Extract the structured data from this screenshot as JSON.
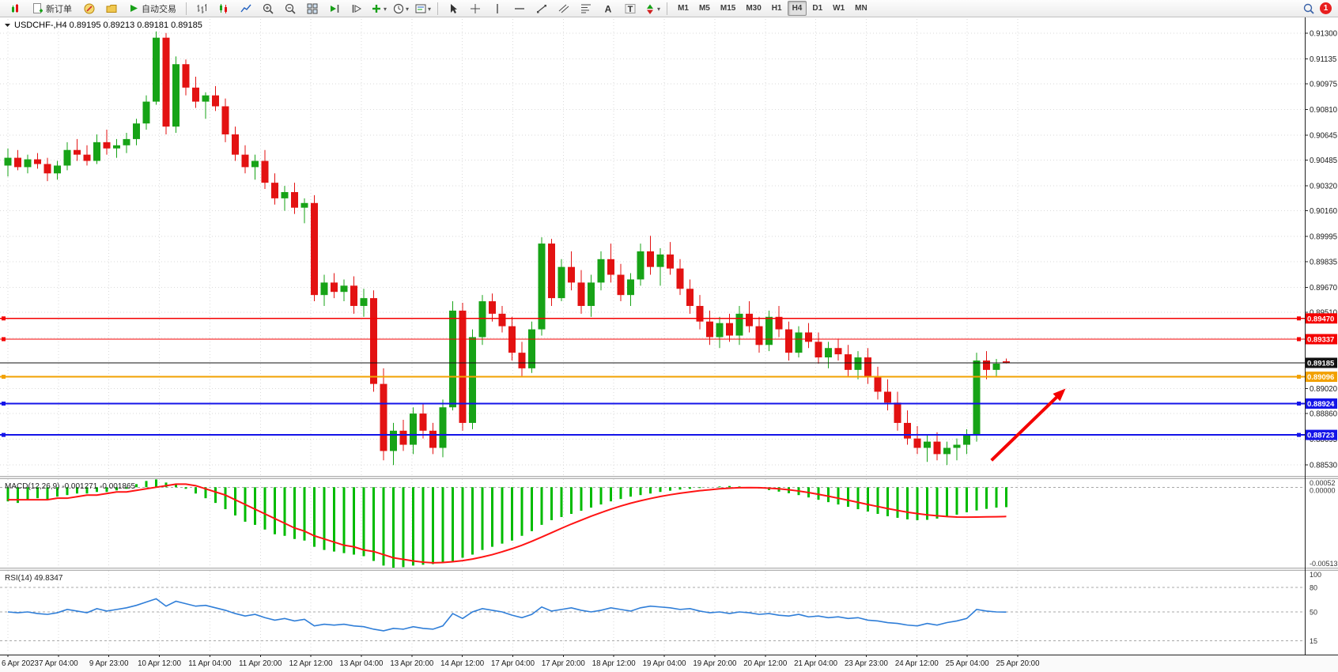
{
  "toolbar": {
    "new_order_label": "新订单",
    "autotrading_label": "自动交易",
    "timeframes": [
      "M1",
      "M5",
      "M15",
      "M30",
      "H1",
      "H4",
      "D1",
      "W1",
      "MN"
    ],
    "active_timeframe": "H4",
    "notification_count": "1"
  },
  "chart": {
    "symbol_header": "USDCHF-,H4",
    "ohlc_text": "0.89195 0.89213 0.89181 0.89185",
    "macd_label": "MACD(12,26,9)",
    "macd_values": "-0.001271 -0.001865",
    "rsi_label": "RSI(14)",
    "rsi_value": "49.8347"
  },
  "chart_data": {
    "type": "candlestick",
    "title": "USDCHF-,H4",
    "up_color": "#17a317",
    "down_color": "#e31212",
    "grid_color": "#dadada",
    "ylim": [
      0.8846,
      0.9139
    ],
    "y_ticks": [
      0.913,
      0.91135,
      0.90975,
      0.9081,
      0.90645,
      0.90485,
      0.9032,
      0.9016,
      0.89995,
      0.89835,
      0.8967,
      0.8951,
      0.89345,
      0.8902,
      0.8886,
      0.88695,
      0.8853
    ],
    "x_labels": [
      "6 Apr 2023",
      "7 Apr 04:00",
      "9 Apr 23:00",
      "10 Apr 12:00",
      "11 Apr 04:00",
      "11 Apr 20:00",
      "12 Apr 12:00",
      "13 Apr 04:00",
      "13 Apr 20:00",
      "14 Apr 12:00",
      "17 Apr 04:00",
      "17 Apr 20:00",
      "18 Apr 12:00",
      "19 Apr 04:00",
      "19 Apr 20:00",
      "20 Apr 12:00",
      "21 Apr 04:00",
      "23 Apr 23:00",
      "24 Apr 12:00",
      "25 Apr 04:00",
      "25 Apr 20:00"
    ],
    "candles": [
      [
        0.9045,
        0.9056,
        0.9038,
        0.905
      ],
      [
        0.905,
        0.9055,
        0.9042,
        0.9044
      ],
      [
        0.9044,
        0.9052,
        0.904,
        0.9049
      ],
      [
        0.9049,
        0.9053,
        0.9043,
        0.9046
      ],
      [
        0.9046,
        0.905,
        0.9035,
        0.904
      ],
      [
        0.904,
        0.9048,
        0.9036,
        0.9045
      ],
      [
        0.9045,
        0.906,
        0.9042,
        0.9055
      ],
      [
        0.9055,
        0.9062,
        0.9048,
        0.9052
      ],
      [
        0.9052,
        0.9058,
        0.9045,
        0.9048
      ],
      [
        0.9048,
        0.9065,
        0.9046,
        0.906
      ],
      [
        0.906,
        0.9068,
        0.9052,
        0.9056
      ],
      [
        0.9056,
        0.9062,
        0.905,
        0.9058
      ],
      [
        0.9058,
        0.9066,
        0.9053,
        0.9062
      ],
      [
        0.9062,
        0.9075,
        0.9058,
        0.9072
      ],
      [
        0.9072,
        0.909,
        0.9068,
        0.9086
      ],
      [
        0.9086,
        0.9131,
        0.9084,
        0.9127
      ],
      [
        0.9127,
        0.913,
        0.9065,
        0.907
      ],
      [
        0.907,
        0.9115,
        0.9066,
        0.911
      ],
      [
        0.911,
        0.9113,
        0.909,
        0.9095
      ],
      [
        0.9095,
        0.9102,
        0.9082,
        0.9086
      ],
      [
        0.9086,
        0.9092,
        0.9075,
        0.909
      ],
      [
        0.909,
        0.9096,
        0.908,
        0.9083
      ],
      [
        0.9083,
        0.9088,
        0.906,
        0.9065
      ],
      [
        0.9065,
        0.907,
        0.9048,
        0.9052
      ],
      [
        0.9052,
        0.9058,
        0.904,
        0.9044
      ],
      [
        0.9044,
        0.9052,
        0.9036,
        0.9048
      ],
      [
        0.9048,
        0.9055,
        0.903,
        0.9034
      ],
      [
        0.9034,
        0.904,
        0.902,
        0.9024
      ],
      [
        0.9024,
        0.9032,
        0.9016,
        0.9028
      ],
      [
        0.9028,
        0.9034,
        0.9014,
        0.9018
      ],
      [
        0.9018,
        0.9024,
        0.9008,
        0.9021
      ],
      [
        0.9021,
        0.9026,
        0.8958,
        0.8962
      ],
      [
        0.8962,
        0.8975,
        0.8955,
        0.897
      ],
      [
        0.897,
        0.8976,
        0.896,
        0.8964
      ],
      [
        0.8964,
        0.8972,
        0.8958,
        0.8968
      ],
      [
        0.8968,
        0.8974,
        0.895,
        0.8955
      ],
      [
        0.8955,
        0.8966,
        0.8948,
        0.896
      ],
      [
        0.896,
        0.8965,
        0.89,
        0.8905
      ],
      [
        0.8905,
        0.8915,
        0.8856,
        0.8862
      ],
      [
        0.8862,
        0.888,
        0.8853,
        0.8875
      ],
      [
        0.8875,
        0.8882,
        0.8862,
        0.8866
      ],
      [
        0.8866,
        0.889,
        0.886,
        0.8886
      ],
      [
        0.8886,
        0.8892,
        0.887,
        0.8875
      ],
      [
        0.8875,
        0.888,
        0.886,
        0.8864
      ],
      [
        0.8864,
        0.8895,
        0.8858,
        0.889
      ],
      [
        0.889,
        0.8958,
        0.8888,
        0.8952
      ],
      [
        0.8952,
        0.8957,
        0.8875,
        0.888
      ],
      [
        0.888,
        0.894,
        0.8876,
        0.8935
      ],
      [
        0.8935,
        0.8962,
        0.893,
        0.8958
      ],
      [
        0.8958,
        0.8963,
        0.8945,
        0.895
      ],
      [
        0.895,
        0.8955,
        0.8938,
        0.8942
      ],
      [
        0.8942,
        0.8948,
        0.892,
        0.8925
      ],
      [
        0.8925,
        0.8932,
        0.891,
        0.8915
      ],
      [
        0.8915,
        0.8945,
        0.8912,
        0.894
      ],
      [
        0.894,
        0.8999,
        0.8936,
        0.8995
      ],
      [
        0.8995,
        0.8998,
        0.8955,
        0.896
      ],
      [
        0.896,
        0.8985,
        0.8958,
        0.898
      ],
      [
        0.898,
        0.899,
        0.8965,
        0.897
      ],
      [
        0.897,
        0.8978,
        0.895,
        0.8955
      ],
      [
        0.8955,
        0.8975,
        0.8948,
        0.897
      ],
      [
        0.897,
        0.899,
        0.8965,
        0.8985
      ],
      [
        0.8985,
        0.8995,
        0.897,
        0.8975
      ],
      [
        0.8975,
        0.8982,
        0.8958,
        0.8962
      ],
      [
        0.8962,
        0.8976,
        0.8955,
        0.8972
      ],
      [
        0.8972,
        0.8995,
        0.8968,
        0.899
      ],
      [
        0.899,
        0.9,
        0.8975,
        0.898
      ],
      [
        0.898,
        0.8992,
        0.8968,
        0.8988
      ],
      [
        0.8988,
        0.8996,
        0.8975,
        0.8979
      ],
      [
        0.8979,
        0.8985,
        0.8962,
        0.8966
      ],
      [
        0.8966,
        0.8972,
        0.895,
        0.8955
      ],
      [
        0.8955,
        0.8962,
        0.894,
        0.8945
      ],
      [
        0.8945,
        0.8952,
        0.893,
        0.8935
      ],
      [
        0.8935,
        0.8948,
        0.8928,
        0.8944
      ],
      [
        0.8944,
        0.895,
        0.8932,
        0.8936
      ],
      [
        0.8936,
        0.8955,
        0.893,
        0.895
      ],
      [
        0.895,
        0.8958,
        0.8938,
        0.8942
      ],
      [
        0.8942,
        0.8948,
        0.8925,
        0.893
      ],
      [
        0.893,
        0.8952,
        0.8926,
        0.8948
      ],
      [
        0.8948,
        0.8955,
        0.8935,
        0.894
      ],
      [
        0.894,
        0.8945,
        0.892,
        0.8925
      ],
      [
        0.8925,
        0.8942,
        0.8922,
        0.8938
      ],
      [
        0.8938,
        0.8944,
        0.8928,
        0.8932
      ],
      [
        0.8932,
        0.8938,
        0.8918,
        0.8922
      ],
      [
        0.8922,
        0.8932,
        0.8915,
        0.8928
      ],
      [
        0.8928,
        0.8934,
        0.892,
        0.8924
      ],
      [
        0.8924,
        0.893,
        0.891,
        0.8914
      ],
      [
        0.8914,
        0.8926,
        0.8908,
        0.8922
      ],
      [
        0.8922,
        0.8928,
        0.8905,
        0.891
      ],
      [
        0.891,
        0.8916,
        0.8895,
        0.89
      ],
      [
        0.89,
        0.8908,
        0.8888,
        0.8893
      ],
      [
        0.8893,
        0.89,
        0.8875,
        0.888
      ],
      [
        0.888,
        0.8888,
        0.8866,
        0.887
      ],
      [
        0.887,
        0.8878,
        0.886,
        0.8864
      ],
      [
        0.8864,
        0.8872,
        0.8855,
        0.8868
      ],
      [
        0.8868,
        0.8874,
        0.8856,
        0.886
      ],
      [
        0.886,
        0.8868,
        0.8853,
        0.8864
      ],
      [
        0.8864,
        0.887,
        0.8856,
        0.8866
      ],
      [
        0.8866,
        0.8876,
        0.886,
        0.8872
      ],
      [
        0.8872,
        0.8925,
        0.8868,
        0.892
      ],
      [
        0.892,
        0.8926,
        0.8908,
        0.8914
      ],
      [
        0.8914,
        0.8921,
        0.891,
        0.8918
      ],
      [
        0.89195,
        0.89213,
        0.89181,
        0.89185
      ]
    ],
    "price_levels": [
      {
        "price": 0.8947,
        "label": "0.89470",
        "color": "#f40000",
        "width": 1.2,
        "name": "resistance-line-1",
        "handle": true
      },
      {
        "price": 0.89337,
        "label": "0.89337",
        "color": "#f40000",
        "width": 1.2,
        "name": "resistance-line-2",
        "handle": true
      },
      {
        "price": 0.89185,
        "label": "0.89185",
        "color": "#111111",
        "width": 1,
        "name": "bid-price-line",
        "handle": false
      },
      {
        "price": 0.89096,
        "label": "0.89096",
        "color": "#f2a100",
        "width": 2,
        "name": "pivot-line",
        "handle": true
      },
      {
        "price": 0.88924,
        "label": "0.88924",
        "color": "#1414e8",
        "width": 2,
        "name": "support-line-1",
        "handle": true
      },
      {
        "price": 0.88723,
        "label": "0.88723",
        "color": "#1414e8",
        "width": 2,
        "name": "support-line-2",
        "handle": true
      }
    ],
    "arrow": {
      "x_bar_start": 99.5,
      "price_start": 0.8856,
      "x_bar_end": 107,
      "price_end": 0.8902,
      "color": "#f40000"
    },
    "macd": {
      "ylim": [
        -0.00513,
        0.00052
      ],
      "histogram_color": "#00bb00",
      "signal_color": "#ff1414",
      "scale_labels": {
        "top": "0.00052",
        "zero": "0.00000",
        "bottom": "-0.00513"
      },
      "histogram": [
        -0.0009,
        -0.001,
        -0.0008,
        -0.0007,
        -0.0008,
        -0.0006,
        -0.0005,
        -0.0004,
        -0.0004,
        -0.0003,
        -0.0003,
        -0.0002,
        -0.0001,
        0.0002,
        0.0004,
        0.0005,
        0.0003,
        0.0002,
        -0.0001,
        -0.0004,
        -0.0007,
        -0.001,
        -0.0014,
        -0.0018,
        -0.0022,
        -0.0024,
        -0.0027,
        -0.003,
        -0.0031,
        -0.0033,
        -0.0034,
        -0.0038,
        -0.004,
        -0.0041,
        -0.0042,
        -0.0043,
        -0.0044,
        -0.0047,
        -0.005,
        -0.00513,
        -0.0051,
        -0.005,
        -0.00495,
        -0.0049,
        -0.0048,
        -0.0047,
        -0.0045,
        -0.0043,
        -0.004,
        -0.0038,
        -0.0036,
        -0.0034,
        -0.0031,
        -0.0028,
        -0.0024,
        -0.0021,
        -0.0019,
        -0.0017,
        -0.0015,
        -0.0013,
        -0.0011,
        -0.0009,
        -0.00075,
        -0.0006,
        -0.0005,
        -0.0004,
        -0.0003,
        -0.00022,
        -0.00015,
        -0.0001,
        -5e-05,
        0.0,
        5e-05,
        8e-05,
        5e-05,
        0.0,
        -8e-05,
        -0.00018,
        -0.00028,
        -0.00038,
        -0.0005,
        -0.00065,
        -0.0008,
        -0.00095,
        -0.0011,
        -0.00125,
        -0.0014,
        -0.00155,
        -0.0017,
        -0.00185,
        -0.00195,
        -0.00205,
        -0.0021,
        -0.00208,
        -0.002,
        -0.0019,
        -0.00175,
        -0.0016,
        -0.00148,
        -0.00138,
        -0.0013,
        -0.001271
      ],
      "signal": [
        -0.0008,
        -0.0008,
        -0.0008,
        -0.0008,
        -0.0008,
        -0.0007,
        -0.0007,
        -0.0006,
        -0.0005,
        -0.0005,
        -0.0004,
        -0.0003,
        -0.0003,
        -0.0002,
        -0.0001,
        0.0,
        0.0001,
        0.0002,
        0.0002,
        0.0001,
        -0.0001,
        -0.0003,
        -0.0005,
        -0.0008,
        -0.0011,
        -0.0014,
        -0.0017,
        -0.002,
        -0.0023,
        -0.0026,
        -0.0028,
        -0.0031,
        -0.0033,
        -0.0035,
        -0.0037,
        -0.0038,
        -0.004,
        -0.0041,
        -0.0043,
        -0.0045,
        -0.0046,
        -0.0047,
        -0.00478,
        -0.00482,
        -0.0048,
        -0.00475,
        -0.00468,
        -0.00458,
        -0.00445,
        -0.0043,
        -0.00412,
        -0.00392,
        -0.0037,
        -0.00345,
        -0.00318,
        -0.0029,
        -0.00262,
        -0.00235,
        -0.0021,
        -0.00185,
        -0.00162,
        -0.0014,
        -0.0012,
        -0.00102,
        -0.00086,
        -0.00072,
        -0.00059,
        -0.00048,
        -0.00038,
        -0.0003,
        -0.00022,
        -0.00016,
        -0.0001,
        -6e-05,
        -3e-05,
        -2e-05,
        -3e-05,
        -6e-05,
        -0.0001,
        -0.00016,
        -0.00024,
        -0.00034,
        -0.00045,
        -0.00057,
        -0.0007,
        -0.00083,
        -0.00096,
        -0.0011,
        -0.00123,
        -0.00136,
        -0.00148,
        -0.00159,
        -0.00168,
        -0.00176,
        -0.00182,
        -0.00187,
        -0.0019,
        -0.00191,
        -0.0019,
        -0.00189,
        -0.00188,
        -0.001865
      ]
    },
    "rsi": {
      "ylim": [
        0,
        100
      ],
      "levels": [
        80,
        50,
        15
      ],
      "line_color": "#2f7ed8",
      "scale_labels": [
        "100",
        "80",
        "50",
        "15"
      ],
      "values": [
        50,
        49,
        50,
        48,
        47,
        49,
        53,
        51,
        49,
        54,
        51,
        53,
        55,
        58,
        62,
        66,
        57,
        63,
        60,
        57,
        58,
        55,
        52,
        48,
        45,
        47,
        43,
        40,
        42,
        39,
        41,
        33,
        35,
        34,
        35,
        33,
        32,
        29,
        27,
        30,
        29,
        32,
        30,
        29,
        33,
        48,
        42,
        50,
        54,
        52,
        50,
        46,
        43,
        47,
        56,
        51,
        53,
        55,
        52,
        50,
        52,
        55,
        53,
        51,
        55,
        57,
        56,
        55,
        53,
        54,
        51,
        49,
        50,
        48,
        50,
        49,
        47,
        48,
        46,
        45,
        47,
        44,
        45,
        43,
        44,
        42,
        43,
        40,
        39,
        37,
        36,
        34,
        33,
        36,
        34,
        37,
        39,
        42,
        53,
        51,
        50,
        49.8347
      ]
    }
  }
}
